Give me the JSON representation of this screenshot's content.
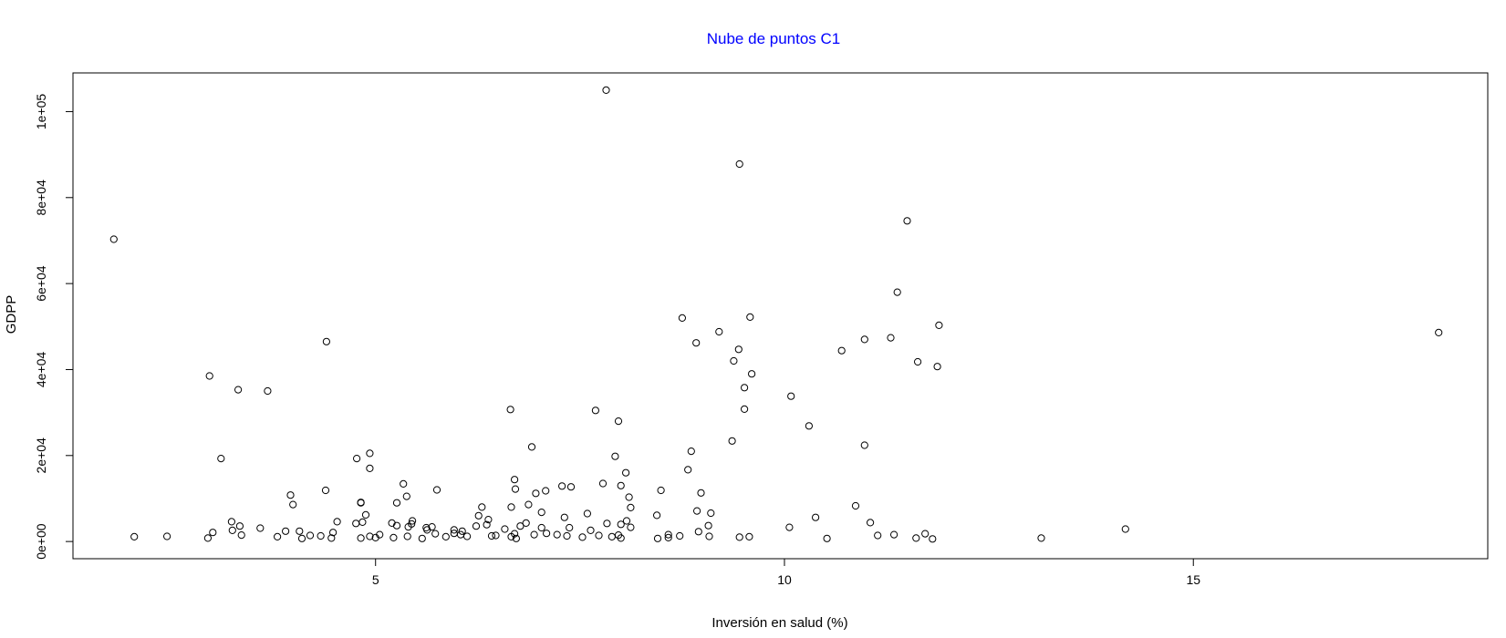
{
  "chart_data": {
    "type": "scatter",
    "title": "Nube de puntos C1",
    "title_color": "#0000ff",
    "xlabel": "Inversión en salud (%)",
    "ylabel": "GDPP",
    "xlim": [
      1.3,
      18.6
    ],
    "ylim": [
      -4000,
      109000
    ],
    "x_ticks": [
      {
        "value": 5,
        "label": "5"
      },
      {
        "value": 10,
        "label": "10"
      },
      {
        "value": 15,
        "label": "15"
      }
    ],
    "y_ticks": [
      {
        "value": 0,
        "label": "0e+00"
      },
      {
        "value": 20000,
        "label": "2e+04"
      },
      {
        "value": 40000,
        "label": "4e+04"
      },
      {
        "value": 60000,
        "label": "6e+04"
      },
      {
        "value": 80000,
        "label": "8e+04"
      },
      {
        "value": 100000,
        "label": "1e+05"
      }
    ],
    "grid": false,
    "marker": "open-circle",
    "points": [
      [
        1.8,
        70300
      ],
      [
        2.97,
        38500
      ],
      [
        3.32,
        35300
      ],
      [
        3.11,
        19300
      ],
      [
        4.4,
        46500
      ],
      [
        3.68,
        35000
      ],
      [
        7.82,
        105000
      ],
      [
        9.45,
        87800
      ],
      [
        11.5,
        74600
      ],
      [
        11.38,
        58000
      ],
      [
        11.89,
        50300
      ],
      [
        11.63,
        41800
      ],
      [
        11.87,
        40700
      ],
      [
        8.75,
        52000
      ],
      [
        9.58,
        52200
      ],
      [
        9.2,
        48800
      ],
      [
        8.92,
        46200
      ],
      [
        9.44,
        44700
      ],
      [
        9.38,
        42000
      ],
      [
        9.6,
        39000
      ],
      [
        9.51,
        35800
      ],
      [
        9.51,
        30800
      ],
      [
        9.36,
        23400
      ],
      [
        10.08,
        33800
      ],
      [
        10.3,
        26900
      ],
      [
        10.7,
        44400
      ],
      [
        10.98,
        47000
      ],
      [
        11.3,
        47400
      ],
      [
        10.98,
        22400
      ],
      [
        18.0,
        48600
      ],
      [
        6.65,
        30700
      ],
      [
        7.69,
        30500
      ],
      [
        7.97,
        28000
      ],
      [
        6.91,
        22000
      ],
      [
        4.93,
        20500
      ],
      [
        4.77,
        19300
      ],
      [
        4.93,
        17000
      ],
      [
        6.7,
        14400
      ],
      [
        7.93,
        19800
      ],
      [
        8.06,
        16000
      ],
      [
        8.86,
        21000
      ],
      [
        8.82,
        16700
      ],
      [
        8.0,
        13000
      ],
      [
        8.49,
        11900
      ],
      [
        8.1,
        10300
      ],
      [
        8.98,
        11300
      ],
      [
        7.28,
        12900
      ],
      [
        7.39,
        12700
      ],
      [
        7.78,
        13500
      ],
      [
        7.08,
        11800
      ],
      [
        6.96,
        11200
      ],
      [
        6.87,
        8600
      ],
      [
        6.71,
        12200
      ],
      [
        6.66,
        8000
      ],
      [
        5.75,
        12000
      ],
      [
        5.34,
        13400
      ],
      [
        5.38,
        10500
      ],
      [
        5.26,
        9000
      ],
      [
        4.39,
        11900
      ],
      [
        3.96,
        10800
      ],
      [
        3.99,
        8600
      ],
      [
        4.82,
        9100
      ],
      [
        4.82,
        9000
      ],
      [
        5.45,
        4800
      ],
      [
        4.88,
        6200
      ],
      [
        7.03,
        6800
      ],
      [
        6.3,
        8000
      ],
      [
        6.26,
        6000
      ],
      [
        8.12,
        7900
      ],
      [
        7.59,
        6500
      ],
      [
        7.31,
        5600
      ],
      [
        8.0,
        4000
      ],
      [
        8.44,
        6100
      ],
      [
        8.07,
        4800
      ],
      [
        8.93,
        7100
      ],
      [
        9.1,
        6600
      ],
      [
        9.07,
        3700
      ],
      [
        10.38,
        5600
      ],
      [
        10.87,
        8300
      ],
      [
        11.05,
        4400
      ],
      [
        3.24,
        4600
      ],
      [
        3.34,
        3600
      ],
      [
        3.59,
        3100
      ],
      [
        3.25,
        2600
      ],
      [
        3.9,
        2400
      ],
      [
        4.07,
        2400
      ],
      [
        4.48,
        2100
      ],
      [
        4.53,
        4600
      ],
      [
        4.76,
        4200
      ],
      [
        4.84,
        4500
      ],
      [
        5.2,
        4300
      ],
      [
        5.26,
        3700
      ],
      [
        5.4,
        3400
      ],
      [
        5.44,
        4100
      ],
      [
        5.62,
        3200
      ],
      [
        5.69,
        3400
      ],
      [
        5.96,
        2700
      ],
      [
        6.06,
        2400
      ],
      [
        6.23,
        3600
      ],
      [
        6.38,
        5100
      ],
      [
        6.36,
        3900
      ],
      [
        6.58,
        2900
      ],
      [
        6.7,
        1800
      ],
      [
        6.77,
        3600
      ],
      [
        6.84,
        4300
      ],
      [
        7.03,
        3200
      ],
      [
        7.37,
        3200
      ],
      [
        7.63,
        2600
      ],
      [
        7.83,
        4200
      ],
      [
        8.12,
        3300
      ],
      [
        7.97,
        1500
      ],
      [
        8.58,
        1600
      ],
      [
        9.08,
        1200
      ],
      [
        10.06,
        3300
      ],
      [
        14.17,
        2900
      ],
      [
        2.05,
        1100
      ],
      [
        2.45,
        1200
      ],
      [
        2.95,
        800
      ],
      [
        3.01,
        2100
      ],
      [
        3.36,
        1500
      ],
      [
        3.8,
        1100
      ],
      [
        4.1,
        700
      ],
      [
        4.2,
        1400
      ],
      [
        4.33,
        1300
      ],
      [
        4.46,
        800
      ],
      [
        4.82,
        800
      ],
      [
        4.93,
        1200
      ],
      [
        5.0,
        900
      ],
      [
        5.05,
        1600
      ],
      [
        5.22,
        900
      ],
      [
        5.39,
        1200
      ],
      [
        5.57,
        700
      ],
      [
        5.73,
        1800
      ],
      [
        5.86,
        1100
      ],
      [
        5.96,
        1900
      ],
      [
        6.04,
        1600
      ],
      [
        6.12,
        1200
      ],
      [
        6.42,
        1300
      ],
      [
        6.47,
        1400
      ],
      [
        6.66,
        1100
      ],
      [
        6.72,
        700
      ],
      [
        6.94,
        1600
      ],
      [
        7.09,
        1900
      ],
      [
        7.22,
        1600
      ],
      [
        7.34,
        1300
      ],
      [
        7.53,
        1000
      ],
      [
        7.73,
        1400
      ],
      [
        7.89,
        1100
      ],
      [
        8.0,
        800
      ],
      [
        8.45,
        700
      ],
      [
        8.58,
        900
      ],
      [
        8.72,
        1300
      ],
      [
        9.45,
        1000
      ],
      [
        9.57,
        1100
      ],
      [
        10.52,
        700
      ],
      [
        11.14,
        1400
      ],
      [
        11.34,
        1600
      ],
      [
        11.61,
        800
      ],
      [
        11.72,
        1800
      ],
      [
        11.81,
        600
      ],
      [
        13.14,
        800
      ],
      [
        8.95,
        2300
      ],
      [
        5.63,
        2700
      ]
    ]
  }
}
